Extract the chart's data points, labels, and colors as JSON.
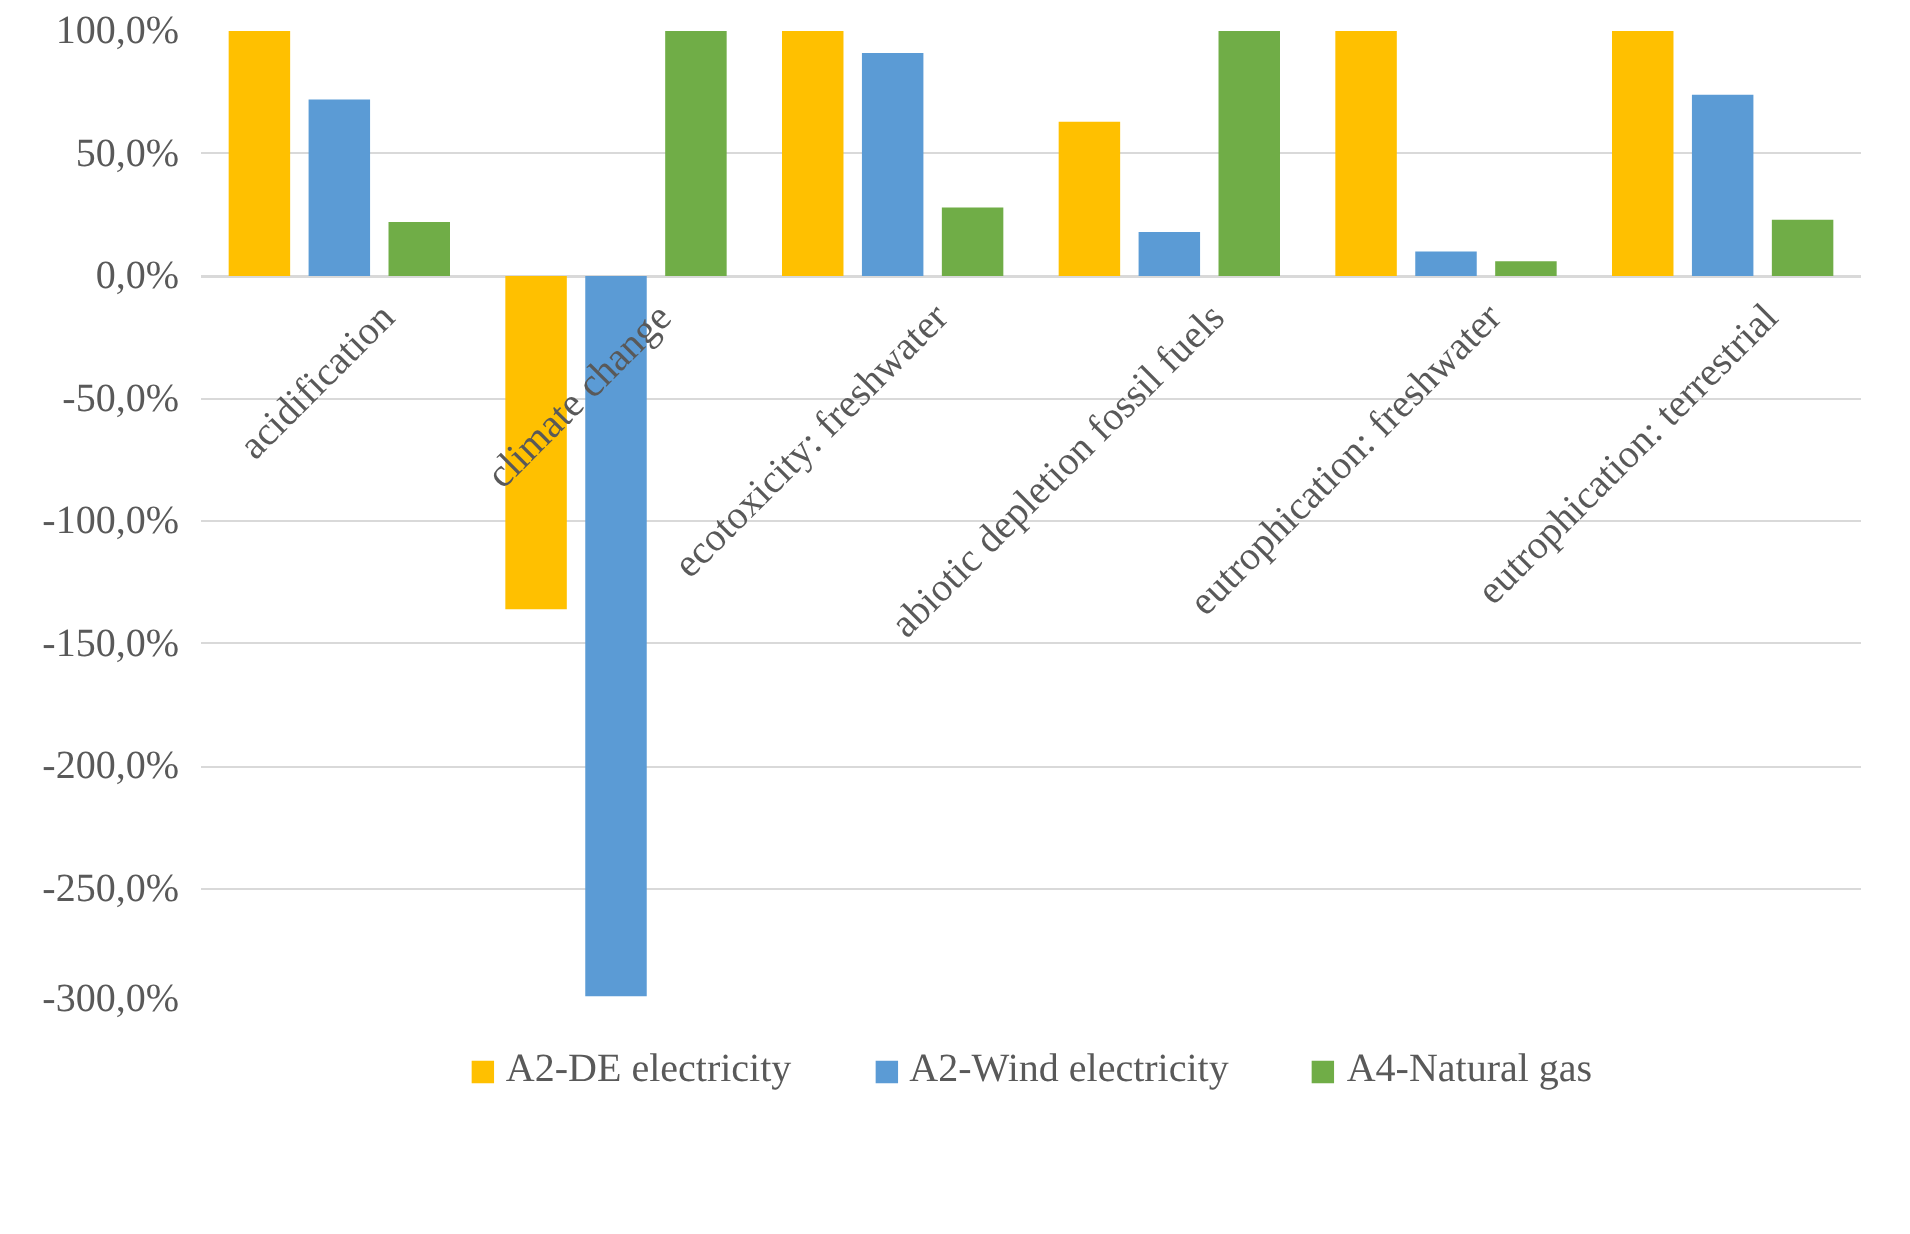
{
  "chart_data": {
    "type": "bar",
    "categories": [
      "acidification",
      "climate change",
      "ecotoxicity: freshwater",
      "abiotic depletion fossil fuels",
      "eutrophication: freshwater",
      "eutrophication: terrestrial"
    ],
    "series": [
      {
        "name": "A2-DE electricity",
        "color": "#ffc000",
        "values": [
          100,
          -136,
          100,
          63,
          100,
          100
        ]
      },
      {
        "name": "A2-Wind electricity",
        "color": "#5b9bd5",
        "values": [
          72,
          -294,
          91,
          18,
          10,
          74
        ]
      },
      {
        "name": "A4-Natural gas",
        "color": "#70ad47",
        "values": [
          22,
          100,
          28,
          100,
          6,
          23
        ]
      }
    ],
    "ylim": [
      -300,
      100
    ],
    "yticks": [
      {
        "value": -300,
        "label": "-300,0%"
      },
      {
        "value": -250,
        "label": "-250,0%"
      },
      {
        "value": -200,
        "label": "-200,0%"
      },
      {
        "value": -150,
        "label": "-150,0%"
      },
      {
        "value": -100,
        "label": "-100,0%"
      },
      {
        "value": -50,
        "label": "-50,0%"
      },
      {
        "value": 0,
        "label": "0,0%"
      },
      {
        "value": 50,
        "label": "50,0%"
      },
      {
        "value": 100,
        "label": "100,0%"
      }
    ],
    "grid": "y",
    "legend": "bottom"
  }
}
